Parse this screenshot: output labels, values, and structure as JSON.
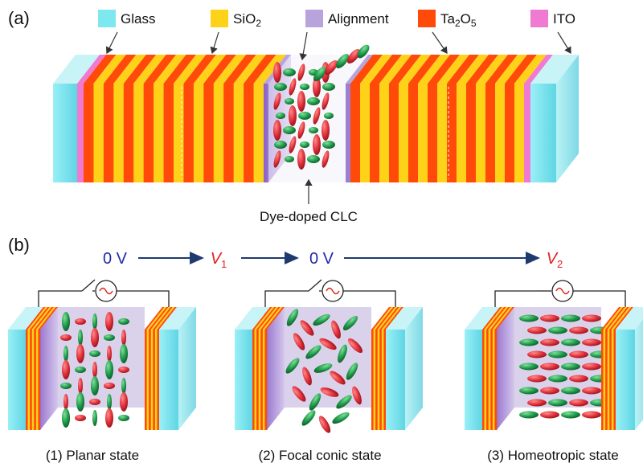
{
  "panel_a": {
    "label": "(a)",
    "legend": [
      {
        "name": "glass",
        "text": "Glass",
        "sub": "",
        "tail": "",
        "color": "#7ee8f0"
      },
      {
        "name": "sio2",
        "text": "SiO",
        "sub": "2",
        "tail": "",
        "color": "#ffd21a"
      },
      {
        "name": "alignment",
        "text": "Alignment",
        "sub": "",
        "tail": "",
        "color": "#b9a3dd"
      },
      {
        "name": "ta2o5",
        "text": "Ta",
        "sub": "2",
        "tail": "O",
        "sub2": "5",
        "color": "#ff4a0a"
      },
      {
        "name": "ito",
        "text": "ITO",
        "sub": "",
        "tail": "",
        "color": "#f07ad2"
      }
    ],
    "lc_label": "Dye-doped CLC"
  },
  "panel_b": {
    "label": "(b)",
    "voltages": [
      {
        "main": "0 V",
        "sub": "",
        "color": "#1f2aa8"
      },
      {
        "main": "V",
        "sub": "1",
        "color": "#e0201a"
      },
      {
        "main": "0 V",
        "sub": "",
        "color": "#1f2aa8"
      },
      {
        "main": "V",
        "sub": "2",
        "color": "#e0201a"
      }
    ],
    "states": [
      "(1) Planar state",
      "(2) Focal conic state",
      "(3) Homeotropic state"
    ]
  },
  "colors": {
    "glass": "#7ee8f0",
    "sio2": "#ffd21a",
    "ta2o5": "#ff4a0a",
    "ito": "#f07ad2",
    "alignment": "#b9a3dd",
    "lc_red": "#e0303a",
    "lc_green": "#1f9a4a",
    "arrow": "#1f3a6e"
  }
}
